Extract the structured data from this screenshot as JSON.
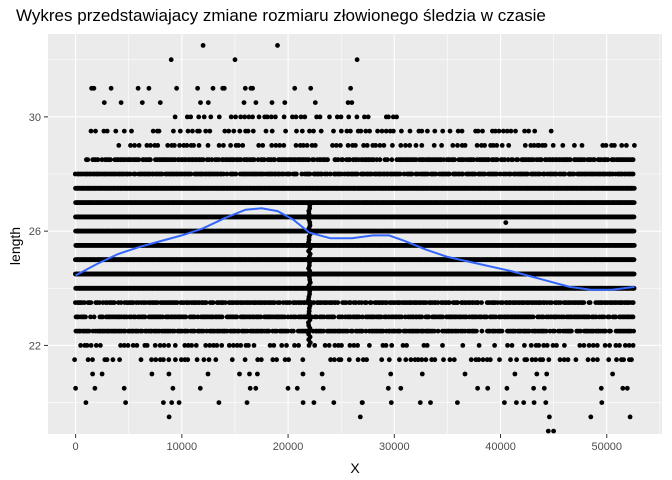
{
  "chart_data": {
    "type": "scatter",
    "title": "Wykres przedstawiajacy zmiane rozmiaru złowionego śledzia w czasie",
    "xlabel": "X",
    "ylabel": "length",
    "xlim": [
      -2600,
      55200
    ],
    "ylim": [
      18.9,
      32.9
    ],
    "x_ticks": [
      0,
      10000,
      20000,
      30000,
      40000,
      50000
    ],
    "x_tick_labels": [
      "0",
      "10000",
      "20000",
      "30000",
      "40000",
      "50000"
    ],
    "y_ticks": [
      22,
      26,
      30
    ],
    "y_tick_labels": [
      "22",
      "26",
      "30"
    ],
    "grid": true,
    "colors": {
      "panel_bg": "#ebebeb",
      "grid": "#ffffff",
      "points": "#000000",
      "smooth_line": "#3366ff"
    },
    "point_bands": [
      {
        "y": 20.0,
        "ranges": [
          [
            0,
            52600
          ]
        ],
        "density": "sparse"
      },
      {
        "y": 20.5,
        "ranges": [
          [
            0,
            52600
          ]
        ],
        "density": "sparse"
      },
      {
        "y": 21.0,
        "ranges": [
          [
            0,
            52600
          ]
        ],
        "density": "sparse"
      },
      {
        "y": 21.5,
        "ranges": [
          [
            0,
            52600
          ]
        ],
        "density": "medium"
      },
      {
        "y": 22.0,
        "ranges": [
          [
            0,
            52600
          ]
        ],
        "density": "medium"
      },
      {
        "y": 22.5,
        "ranges": [
          [
            0,
            52600
          ]
        ],
        "density": "dense"
      },
      {
        "y": 23.0,
        "ranges": [
          [
            0,
            52600
          ]
        ],
        "density": "dense"
      },
      {
        "y": 23.5,
        "ranges": [
          [
            0,
            52600
          ]
        ],
        "density": "dense"
      },
      {
        "y": 24.0,
        "ranges": [
          [
            0,
            52600
          ]
        ],
        "density": "solid"
      },
      {
        "y": 24.5,
        "ranges": [
          [
            0,
            52600
          ]
        ],
        "density": "solid"
      },
      {
        "y": 25.0,
        "ranges": [
          [
            0,
            52600
          ]
        ],
        "density": "solid"
      },
      {
        "y": 25.5,
        "ranges": [
          [
            0,
            52600
          ]
        ],
        "density": "solid"
      },
      {
        "y": 26.0,
        "ranges": [
          [
            0,
            52600
          ]
        ],
        "density": "solid"
      },
      {
        "y": 26.5,
        "ranges": [
          [
            0,
            52600
          ]
        ],
        "density": "solid"
      },
      {
        "y": 27.0,
        "ranges": [
          [
            0,
            52600
          ]
        ],
        "density": "solid"
      },
      {
        "y": 27.5,
        "ranges": [
          [
            0,
            52600
          ]
        ],
        "density": "solid"
      },
      {
        "y": 28.0,
        "ranges": [
          [
            0,
            52600
          ]
        ],
        "density": "dense"
      },
      {
        "y": 28.5,
        "ranges": [
          [
            1000,
            52600
          ]
        ],
        "density": "dense"
      },
      {
        "y": 29.0,
        "ranges": [
          [
            4000,
            52600
          ]
        ],
        "density": "medium"
      },
      {
        "y": 29.5,
        "ranges": [
          [
            1500,
            45000
          ]
        ],
        "density": "medium"
      },
      {
        "y": 30.0,
        "ranges": [
          [
            9000,
            31000
          ]
        ],
        "density": "medium"
      },
      {
        "y": 30.5,
        "ranges": [
          [
            2500,
            26500
          ]
        ],
        "density": "sparse"
      },
      {
        "y": 31.0,
        "ranges": [
          [
            1500,
            26500
          ]
        ],
        "density": "sparse"
      }
    ],
    "notable_points": [
      [
        12000,
        32.5
      ],
      [
        19000,
        32.5
      ],
      [
        15000,
        32.0
      ],
      [
        9000,
        32.0
      ],
      [
        26500,
        32.0
      ],
      [
        8800,
        19.5
      ],
      [
        24300,
        20.0
      ],
      [
        26800,
        19.5
      ],
      [
        27000,
        20.0
      ],
      [
        44500,
        19.0
      ],
      [
        45000,
        19.0
      ],
      [
        44600,
        19.5
      ],
      [
        48500,
        19.5
      ],
      [
        52200,
        19.5
      ],
      [
        1500,
        31.0
      ],
      [
        2700,
        30.5
      ],
      [
        26000,
        30.5
      ],
      [
        43500,
        29.0
      ],
      [
        46200,
        28.5
      ],
      [
        46500,
        28.0
      ],
      [
        52600,
        29.0
      ],
      [
        40500,
        26.3
      ],
      [
        40500,
        27.0
      ],
      [
        14000,
        31.0
      ],
      [
        16500,
        31.0
      ]
    ],
    "column_cluster": {
      "x": 22000,
      "y_range": [
        22.0,
        27.0
      ]
    },
    "smooth_curve": [
      [
        0,
        24.45
      ],
      [
        2000,
        24.85
      ],
      [
        4000,
        25.2
      ],
      [
        6000,
        25.45
      ],
      [
        8000,
        25.65
      ],
      [
        10000,
        25.85
      ],
      [
        12000,
        26.1
      ],
      [
        14000,
        26.45
      ],
      [
        16000,
        26.75
      ],
      [
        17500,
        26.8
      ],
      [
        19000,
        26.7
      ],
      [
        20500,
        26.4
      ],
      [
        22000,
        25.95
      ],
      [
        24000,
        25.75
      ],
      [
        26000,
        25.75
      ],
      [
        28000,
        25.85
      ],
      [
        29500,
        25.85
      ],
      [
        31000,
        25.65
      ],
      [
        33000,
        25.35
      ],
      [
        35000,
        25.1
      ],
      [
        38000,
        24.85
      ],
      [
        41000,
        24.6
      ],
      [
        44000,
        24.3
      ],
      [
        46500,
        24.05
      ],
      [
        48500,
        23.95
      ],
      [
        50500,
        23.95
      ],
      [
        52600,
        24.05
      ]
    ]
  }
}
